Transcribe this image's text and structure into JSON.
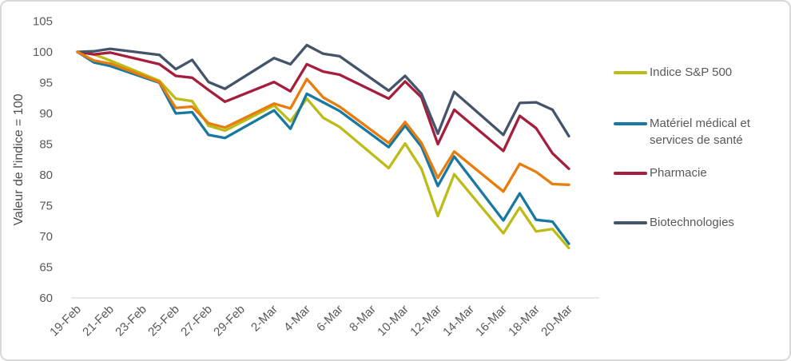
{
  "chart_data": {
    "type": "line",
    "ylabel": "Valeur de l'indice = 100",
    "ylim": [
      60,
      105
    ],
    "y_ticks": [
      60,
      65,
      70,
      75,
      80,
      85,
      90,
      95,
      100,
      105
    ],
    "x_tick_labels": [
      "19-Feb",
      "21-Feb",
      "23-Feb",
      "25-Feb",
      "27-Feb",
      "29-Feb",
      "2-Mar",
      "4-Mar",
      "6-Mar",
      "8-Mar",
      "10-Mar",
      "12-Mar",
      "14-Mar",
      "16-Mar",
      "18-Mar",
      "20-Mar"
    ],
    "x_tick_interval_days": 2,
    "dates": [
      "19-Feb",
      "20-Feb",
      "21-Feb",
      "24-Feb",
      "25-Feb",
      "26-Feb",
      "27-Feb",
      "28-Feb",
      "2-Mar",
      "3-Mar",
      "4-Mar",
      "5-Mar",
      "6-Mar",
      "9-Mar",
      "10-Mar",
      "11-Mar",
      "12-Mar",
      "13-Mar",
      "16-Mar",
      "17-Mar",
      "18-Mar",
      "19-Mar",
      "20-Mar"
    ],
    "day_offsets": [
      0,
      1,
      2,
      5,
      6,
      7,
      8,
      9,
      12,
      13,
      14,
      15,
      16,
      19,
      20,
      21,
      22,
      23,
      26,
      27,
      28,
      29,
      30
    ],
    "grid": false,
    "legend_position": "right",
    "series": [
      {
        "id": "indice-sp500",
        "name": "Indice S&P 500",
        "color": "#BCBB17",
        "in_legend": true,
        "values": [
          100,
          99.6,
          98.6,
          95.3,
          92.4,
          92.0,
          88.0,
          87.2,
          91.3,
          88.7,
          92.4,
          89.3,
          87.8,
          81.1,
          85.1,
          81.0,
          73.3,
          80.1,
          70.5,
          74.7,
          70.8,
          71.2,
          68.1
        ]
      },
      {
        "id": "materiel-medical-et-services-de-sante",
        "name": "Matériel médical et services de santé",
        "color": "#1878A0",
        "in_legend": true,
        "values": [
          100,
          98.3,
          97.7,
          95.0,
          90.0,
          90.2,
          86.5,
          86.0,
          90.5,
          87.5,
          93.2,
          91.8,
          90.4,
          84.5,
          88.0,
          84.6,
          78.2,
          83.0,
          72.6,
          77.0,
          72.7,
          72.4,
          68.8
        ]
      },
      {
        "id": "pharmacie",
        "name": "Pharmacie",
        "color": "#A51E3C",
        "in_legend": true,
        "values": [
          100,
          99.6,
          99.9,
          98.0,
          96.1,
          95.8,
          93.8,
          91.9,
          95.1,
          93.6,
          98.0,
          96.8,
          96.3,
          92.4,
          95.2,
          92.6,
          85.0,
          90.6,
          83.9,
          89.6,
          87.6,
          83.5,
          81.0
        ]
      },
      {
        "id": "biotechnologies",
        "name": "Biotechnologies",
        "color": "#44546A",
        "in_legend": true,
        "values": [
          100,
          100.1,
          100.5,
          99.5,
          97.2,
          98.7,
          95.1,
          94.0,
          99.0,
          98.0,
          101.1,
          99.7,
          99.3,
          93.7,
          96.1,
          93.2,
          86.7,
          93.5,
          86.5,
          91.7,
          91.8,
          90.6,
          86.3
        ]
      },
      {
        "id": "serie-orange-sans-legende",
        "name": "",
        "color": "#E87D0D",
        "in_legend": false,
        "values": [
          100,
          98.6,
          98.1,
          95.1,
          90.9,
          91.1,
          88.4,
          87.7,
          91.6,
          90.8,
          95.6,
          92.6,
          91.1,
          85.2,
          88.6,
          85.2,
          79.5,
          83.8,
          77.3,
          81.8,
          80.5,
          78.5,
          78.4
        ]
      }
    ]
  },
  "axis_colors": {
    "tick_text": "#595959",
    "axis_line": "#D9D9D9"
  }
}
